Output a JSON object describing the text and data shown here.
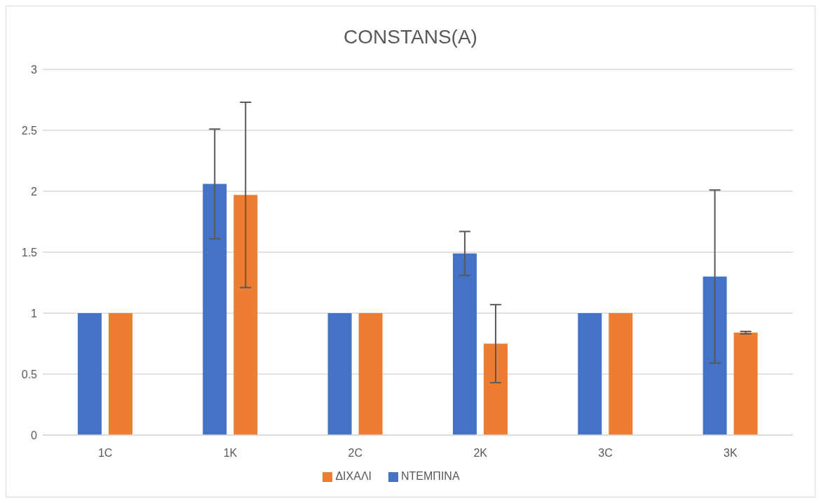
{
  "chart_data": {
    "type": "bar",
    "title": "CONSTANS(A)",
    "categories": [
      "1C",
      "1K",
      "2C",
      "2K",
      "3C",
      "3K"
    ],
    "series": [
      {
        "name": "ΝΤΕΜΠΙΝΑ",
        "color": "#4472c4",
        "values": [
          1,
          2.06,
          1,
          1.49,
          1,
          1.3
        ],
        "errors": [
          0,
          0.45,
          0,
          0.18,
          0,
          0.71
        ]
      },
      {
        "name": "ΔΙΧΑΛΙ",
        "color": "#ed7d31",
        "values": [
          1,
          1.97,
          1,
          0.75,
          1,
          0.84
        ],
        "errors": [
          0,
          0.76,
          0,
          0.32,
          0,
          0.01
        ]
      }
    ],
    "ylim": [
      0,
      3
    ],
    "yticks": [
      0,
      0.5,
      1,
      1.5,
      2,
      2.5,
      3
    ],
    "grid": "y",
    "legend": "bottom"
  }
}
